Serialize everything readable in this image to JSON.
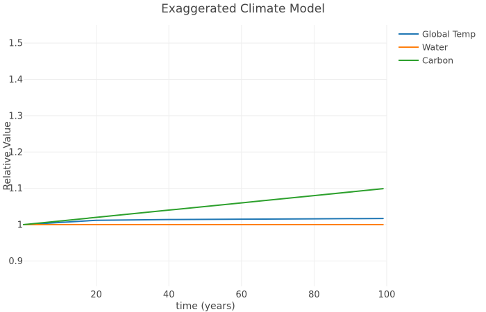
{
  "chart_data": {
    "type": "line",
    "title": "Exaggerated Climate Model",
    "xlabel": "time (years)",
    "ylabel": "Relative Value",
    "xlim": [
      0,
      100
    ],
    "ylim": [
      0.83,
      1.55
    ],
    "xticks": [
      20,
      40,
      60,
      80,
      100
    ],
    "xtick_labels": [
      "20",
      "40",
      "60",
      "80",
      "100"
    ],
    "yticks": [
      0.9,
      1.0,
      1.1,
      1.2,
      1.3,
      1.4,
      1.5
    ],
    "ytick_labels": [
      "0.9",
      "1",
      "1.1",
      "1.2",
      "1.3",
      "1.4",
      "1.5"
    ],
    "grid": true,
    "legend_position": "top-right",
    "x": [
      0,
      20,
      40,
      60,
      80,
      99
    ],
    "series": [
      {
        "name": "Global Temp",
        "color": "#1f77b4",
        "values": [
          1.0,
          1.012,
          1.014,
          1.015,
          1.016,
          1.017
        ]
      },
      {
        "name": "Water",
        "color": "#ff7f0e",
        "values": [
          1.0,
          1.0,
          1.0,
          1.0,
          1.0,
          1.0
        ]
      },
      {
        "name": "Carbon",
        "color": "#2ca02c",
        "values": [
          1.0,
          1.02,
          1.04,
          1.06,
          1.08,
          1.099
        ]
      }
    ]
  }
}
